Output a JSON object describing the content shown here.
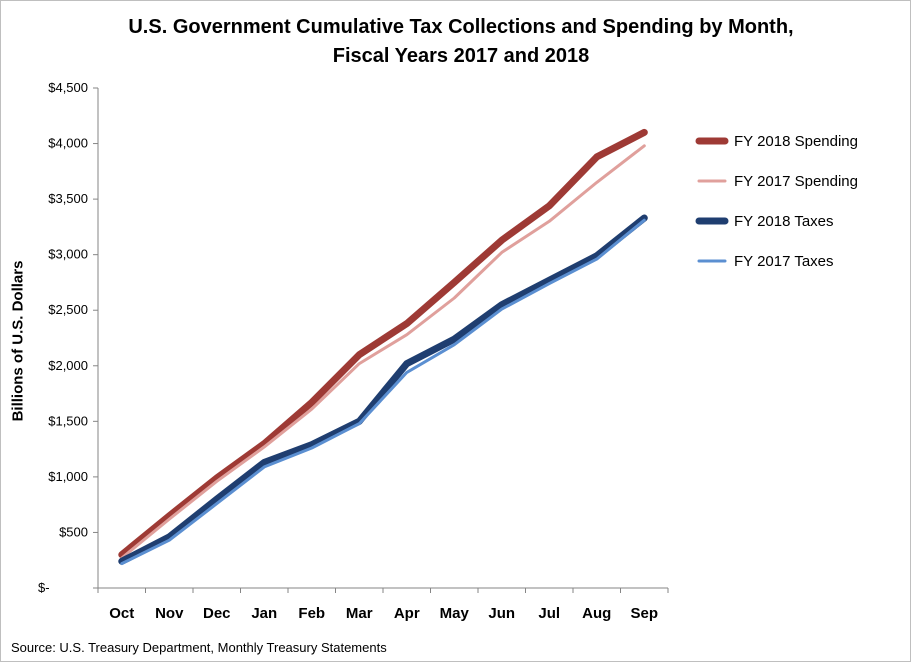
{
  "chart_data": {
    "type": "line",
    "title_lines": [
      "U.S. Government Cumulative Tax Collections and Spending by Month,",
      "Fiscal Years 2017 and 2018"
    ],
    "ylabel": "Billions of U.S. Dollars",
    "source": "Source: U.S. Treasury Department, Monthly Treasury Statements",
    "categories": [
      "Oct",
      "Nov",
      "Dec",
      "Jan",
      "Feb",
      "Mar",
      "Apr",
      "May",
      "Jun",
      "Jul",
      "Aug",
      "Sep"
    ],
    "ylim": [
      0,
      4500
    ],
    "yticks": [
      0,
      500,
      1000,
      1500,
      2000,
      2500,
      3000,
      3500,
      4000,
      4500
    ],
    "ytick_labels": [
      "$-",
      "$500",
      "$1,000",
      "$1,500",
      "$2,000",
      "$2,500",
      "$3,000",
      "$3,500",
      "$4,000",
      "$4,500"
    ],
    "grid": false,
    "legend_position": "right",
    "series": [
      {
        "name": "FY 2018 Spending",
        "color": "#9e3a35",
        "values": [
          300,
          650,
          990,
          1300,
          1670,
          2100,
          2380,
          2750,
          3130,
          3440,
          3880,
          4100
        ]
      },
      {
        "name": "FY 2017 Spending",
        "color": "#e0a09c",
        "values": [
          270,
          620,
          960,
          1270,
          1610,
          2020,
          2280,
          2610,
          3020,
          3300,
          3650,
          3980
        ]
      },
      {
        "name": "FY 2018 Taxes",
        "color": "#1f3e70",
        "values": [
          240,
          460,
          800,
          1130,
          1290,
          1500,
          2020,
          2240,
          2550,
          2770,
          2990,
          3330
        ]
      },
      {
        "name": "FY 2017 Taxes",
        "color": "#5b8fd1",
        "values": [
          220,
          430,
          760,
          1090,
          1260,
          1480,
          1940,
          2190,
          2510,
          2740,
          2960,
          3310
        ]
      }
    ]
  }
}
